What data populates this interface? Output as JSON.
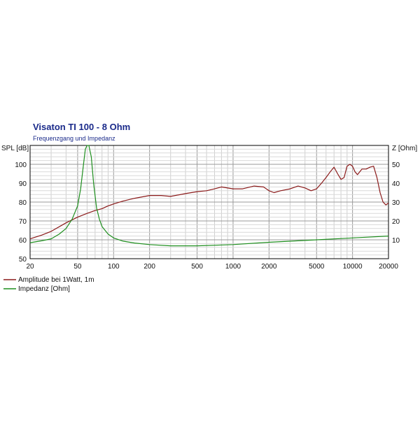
{
  "chart_data": {
    "type": "line",
    "title": "Visaton TI 100 - 8 Ohm",
    "subtitle": "Frequenzgang und Impedanz",
    "x_scale": "log",
    "xlim": [
      20,
      20000
    ],
    "x_ticks": [
      20,
      50,
      100,
      200,
      500,
      1000,
      2000,
      5000,
      10000,
      20000
    ],
    "x_tick_labels": [
      "20",
      "50",
      "100",
      "200",
      "500",
      "1000",
      "2000",
      "5000",
      "10000",
      "20000"
    ],
    "ylabel_left": "SPL [dB]",
    "ylim_left": [
      50,
      110
    ],
    "y_ticks_left": [
      "50",
      "60",
      "70",
      "80",
      "90",
      "100"
    ],
    "y_tick_values_left": [
      50,
      60,
      70,
      80,
      90,
      100
    ],
    "ylabel_right": "Z [Ohm]",
    "ylim_right": [
      0,
      60
    ],
    "y_ticks_right": [
      "10",
      "20",
      "30",
      "40",
      "50"
    ],
    "y_tick_values_right": [
      10,
      20,
      30,
      40,
      50
    ],
    "grid": true,
    "legend_position": "bottom-left",
    "series": [
      {
        "name": "Amplitude bei 1Watt, 1m",
        "axis": "left",
        "color": "#8b1a1a",
        "x": [
          20,
          25,
          30,
          40,
          50,
          60,
          70,
          80,
          90,
          100,
          120,
          150,
          200,
          250,
          300,
          400,
          500,
          600,
          700,
          800,
          1000,
          1200,
          1500,
          1800,
          2000,
          2200,
          2500,
          3000,
          3500,
          4000,
          4500,
          5000,
          5500,
          6000,
          6500,
          7000,
          7500,
          8000,
          8500,
          9000,
          9500,
          10000,
          10500,
          11000,
          12000,
          13000,
          14000,
          15000,
          16000,
          17000,
          18000,
          19000,
          20000
        ],
        "y": [
          60.5,
          62.5,
          64.5,
          69,
          72,
          74,
          75.5,
          76.5,
          78,
          79,
          80.5,
          82,
          83.5,
          83.5,
          83,
          84.5,
          85.5,
          86,
          87,
          88,
          87,
          87,
          88.5,
          88,
          86,
          85,
          86,
          87,
          88.5,
          87.5,
          86,
          87,
          90,
          93,
          96,
          98.5,
          95,
          92,
          93,
          99,
          100,
          99,
          96,
          94.5,
          97.5,
          97.5,
          98.5,
          99,
          93,
          85,
          80,
          78.5,
          79.5
        ]
      },
      {
        "name": "Impedanz [Ohm]",
        "axis": "right",
        "color": "#1f8f1f",
        "x": [
          20,
          25,
          30,
          35,
          40,
          45,
          50,
          53,
          56,
          58,
          60,
          62,
          65,
          68,
          72,
          76,
          80,
          90,
          100,
          120,
          150,
          200,
          300,
          500,
          1000,
          2000,
          5000,
          10000,
          20000
        ],
        "y": [
          8.5,
          9.5,
          10.5,
          13,
          16,
          21,
          28,
          37,
          50,
          58,
          60,
          60,
          54,
          40,
          27,
          21,
          17,
          13,
          11,
          9.3,
          8.3,
          7.5,
          6.8,
          6.8,
          7.5,
          8.7,
          10,
          11,
          12
        ]
      }
    ]
  }
}
